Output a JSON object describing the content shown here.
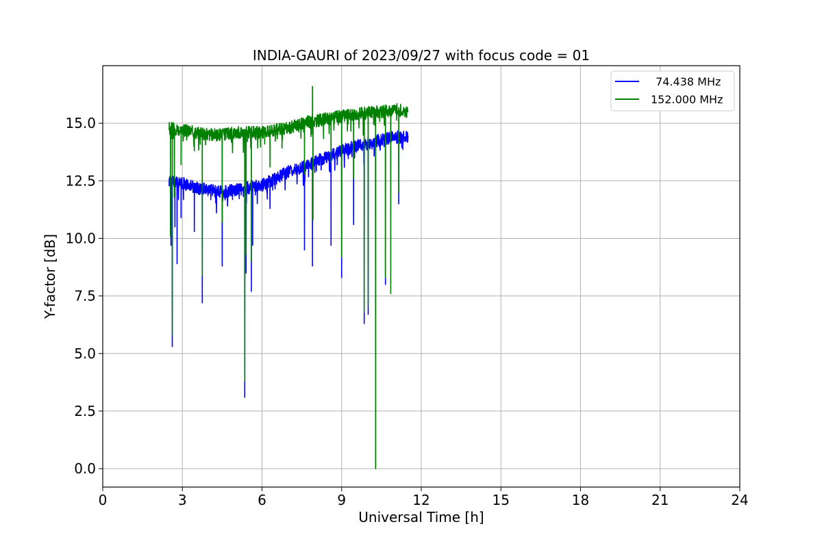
{
  "chart_data": {
    "type": "line",
    "title": "INDIA-GAURI of 2023/09/27 with focus code = 01",
    "xlabel": "Universal Time [h]",
    "ylabel": "Y-factor [dB]",
    "xlim": [
      0,
      24
    ],
    "ylim": [
      -0.8,
      17.5
    ],
    "xticks": [
      0,
      3,
      6,
      9,
      12,
      15,
      18,
      21,
      24
    ],
    "xtick_labels": [
      "0",
      "3",
      "6",
      "9",
      "12",
      "15",
      "18",
      "21",
      "24"
    ],
    "yticks": [
      0,
      2.5,
      5,
      7.5,
      10,
      12.5,
      15
    ],
    "ytick_labels": [
      "0.0",
      "2.5",
      "5.0",
      "7.5",
      "10.0",
      "12.5",
      "15.0"
    ],
    "grid": true,
    "legend_position": "upper right",
    "series": [
      {
        "name": " 74.438 MHz",
        "color": "#0000ff",
        "x": [
          2.5,
          3.0,
          3.5,
          4.0,
          4.5,
          5.0,
          5.5,
          6.0,
          6.5,
          7.0,
          7.5,
          8.0,
          8.5,
          9.0,
          9.5,
          10.0,
          10.5,
          11.0,
          11.5
        ],
        "y": [
          12.5,
          12.4,
          12.2,
          12.1,
          12.0,
          12.1,
          12.2,
          12.3,
          12.6,
          12.9,
          13.1,
          13.3,
          13.6,
          13.8,
          14.0,
          14.1,
          14.3,
          14.4,
          14.4
        ],
        "dips": [
          [
            2.57,
            9.7
          ],
          [
            2.62,
            5.3
          ],
          [
            2.72,
            10.5
          ],
          [
            2.8,
            8.9
          ],
          [
            2.95,
            10.9
          ],
          [
            3.45,
            10.3
          ],
          [
            3.75,
            7.2
          ],
          [
            4.5,
            8.8
          ],
          [
            5.35,
            3.1
          ],
          [
            5.4,
            8.5
          ],
          [
            5.6,
            7.7
          ],
          [
            5.65,
            9.7
          ],
          [
            6.3,
            11.3
          ],
          [
            7.6,
            9.5
          ],
          [
            7.9,
            8.8
          ],
          [
            8.6,
            9.7
          ],
          [
            9.0,
            8.3
          ],
          [
            9.45,
            10.6
          ],
          [
            9.85,
            6.3
          ],
          [
            10.0,
            6.7
          ],
          [
            10.28,
            0.05
          ],
          [
            10.65,
            8.0
          ],
          [
            11.15,
            11.5
          ]
        ]
      },
      {
        "name": "152.000 MHz",
        "color": "#008000",
        "x": [
          2.5,
          3.0,
          3.5,
          4.0,
          4.5,
          5.0,
          5.5,
          6.0,
          6.5,
          7.0,
          7.5,
          8.0,
          8.5,
          9.0,
          9.5,
          10.0,
          10.5,
          11.0,
          11.5
        ],
        "y": [
          14.8,
          14.7,
          14.6,
          14.5,
          14.5,
          14.6,
          14.6,
          14.6,
          14.7,
          14.8,
          15.0,
          15.1,
          15.2,
          15.3,
          15.4,
          15.5,
          15.5,
          15.6,
          15.5
        ],
        "dips": [
          [
            2.55,
            10.1
          ],
          [
            2.62,
            5.8
          ],
          [
            2.7,
            11.8
          ],
          [
            2.95,
            13.2
          ],
          [
            3.45,
            13.8
          ],
          [
            3.75,
            8.4
          ],
          [
            4.5,
            10.7
          ],
          [
            5.35,
            3.8
          ],
          [
            5.4,
            9.3
          ],
          [
            5.6,
            9.0
          ],
          [
            6.3,
            13.1
          ],
          [
            7.6,
            12.8
          ],
          [
            7.9,
            16.6
          ],
          [
            7.92,
            10.8
          ],
          [
            8.6,
            13.3
          ],
          [
            9.0,
            9.2
          ],
          [
            9.45,
            12.6
          ],
          [
            9.85,
            6.8
          ],
          [
            10.0,
            7.1
          ],
          [
            10.28,
            0.0
          ],
          [
            10.65,
            8.3
          ],
          [
            10.85,
            7.6
          ],
          [
            11.15,
            12.0
          ]
        ]
      }
    ]
  }
}
